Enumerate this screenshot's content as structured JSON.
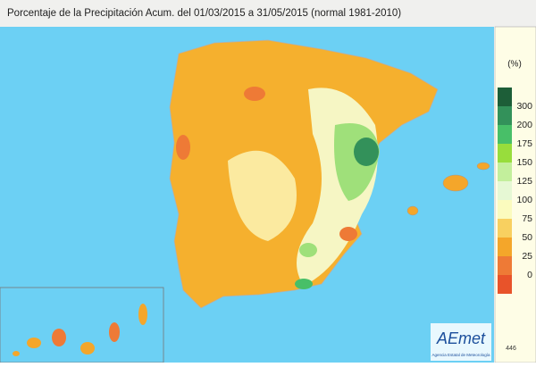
{
  "header": {
    "title": "Porcentaje de la Precipitación Acum. del 01/03/2015 a  31/05/2015  (normal 1981-2010)"
  },
  "legend": {
    "unit": "(%)",
    "colors": [
      "#1d5e38",
      "#33915a",
      "#48bf68",
      "#98dd3c",
      "#c3ef9c",
      "#e6f8d4",
      "#fbfbbe",
      "#f8d060",
      "#f4a62a",
      "#ee7a36",
      "#e8532a"
    ],
    "labels": [
      300,
      200,
      175,
      150,
      125,
      100,
      75,
      50,
      25,
      0
    ]
  },
  "footer": {
    "logo": "AEmet",
    "agency": "Agencia Estatal de Meteorología",
    "code": "446"
  }
}
